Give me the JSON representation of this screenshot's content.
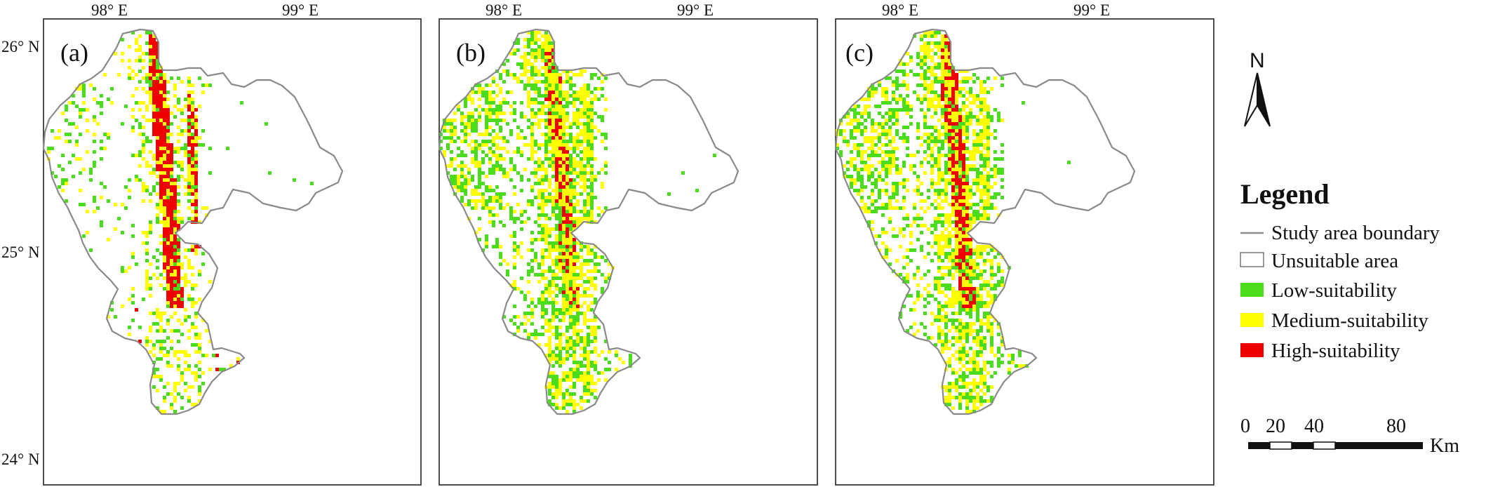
{
  "axes": {
    "lon_labels": [
      "98° E",
      "99° E"
    ],
    "lat_labels": [
      "26° N",
      "25° N",
      "24° N"
    ]
  },
  "panels": [
    {
      "label": "(a)",
      "profile": "high"
    },
    {
      "label": "(b)",
      "profile": "medium"
    },
    {
      "label": "(c)",
      "profile": "mixed"
    }
  ],
  "north_arrow": {
    "label": "N",
    "icon": "north-arrow-icon"
  },
  "legend": {
    "title": "Legend",
    "items": [
      {
        "key": "boundary",
        "label": "Study area boundary",
        "color": "#8a8a8a"
      },
      {
        "key": "unsuitable",
        "label": "Unsuitable area",
        "color": "#ffffff"
      },
      {
        "key": "low",
        "label": "Low-suitability",
        "color": "#4cdc1e"
      },
      {
        "key": "medium",
        "label": "Medium-suitability",
        "color": "#ffff00"
      },
      {
        "key": "high",
        "label": "High-suitability",
        "color": "#ee0000"
      }
    ]
  },
  "scale_bar": {
    "labels": [
      "0",
      "20",
      "40",
      "80"
    ],
    "unit": "Km"
  }
}
